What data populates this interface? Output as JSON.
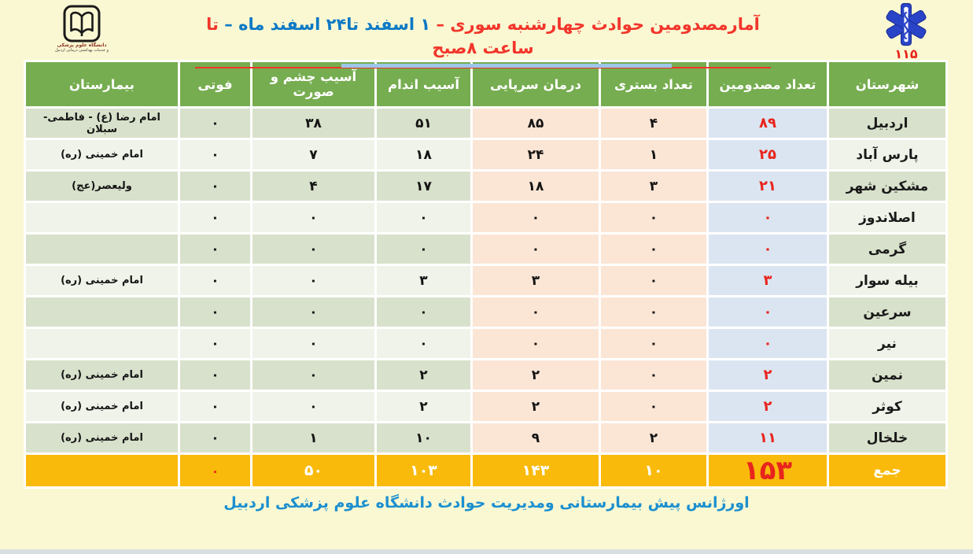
{
  "header": {
    "title_part1": "آمارمصدومین حوادث چهارشنبه سوری –",
    "title_part2": "۱ اسفند تا۲۴ اسفند ماه –",
    "title_part3": "تا ساعت ۸صبح",
    "ems_number": "۱۱۵",
    "university_caption_line1": "دانشگاه علوم پزشکی",
    "university_caption_line2": "و خدمات بهداشتی درمانی اردبیل"
  },
  "table": {
    "headers": [
      "شهرستان",
      "تعداد مصدومین",
      "تعداد بستری",
      "درمان سرپایی",
      "آسیب اندام",
      "آسیب چشم و\nصورت",
      "فوتی",
      "بیمارستان"
    ],
    "rows": [
      {
        "county": "اردبیل",
        "injured": "۸۹",
        "admitted": "۴",
        "outpatient": "۸۵",
        "limb": "۵۱",
        "eye": "۳۸",
        "death": "۰",
        "hospital": "امام رضا (ع) - فاطمی- سبلان"
      },
      {
        "county": "پارس آباد",
        "injured": "۲۵",
        "admitted": "۱",
        "outpatient": "۲۴",
        "limb": "۱۸",
        "eye": "۷",
        "death": "۰",
        "hospital": "امام خمینی (ره)"
      },
      {
        "county": "مشکین شهر",
        "injured": "۲۱",
        "admitted": "۳",
        "outpatient": "۱۸",
        "limb": "۱۷",
        "eye": "۴",
        "death": "۰",
        "hospital": "ولیعصر(عج)"
      },
      {
        "county": "اصلاندوز",
        "injured": "۰",
        "admitted": "۰",
        "outpatient": "۰",
        "limb": "۰",
        "eye": "۰",
        "death": "۰",
        "hospital": ""
      },
      {
        "county": "گرمی",
        "injured": "۰",
        "admitted": "۰",
        "outpatient": "۰",
        "limb": "۰",
        "eye": "۰",
        "death": "۰",
        "hospital": ""
      },
      {
        "county": "بیله سوار",
        "injured": "۳",
        "admitted": "۰",
        "outpatient": "۳",
        "limb": "۳",
        "eye": "۰",
        "death": "۰",
        "hospital": "امام خمینی (ره)"
      },
      {
        "county": "سرعین",
        "injured": "۰",
        "admitted": "۰",
        "outpatient": "۰",
        "limb": "۰",
        "eye": "۰",
        "death": "۰",
        "hospital": ""
      },
      {
        "county": "نیر",
        "injured": "۰",
        "admitted": "۰",
        "outpatient": "۰",
        "limb": "۰",
        "eye": "۰",
        "death": "۰",
        "hospital": ""
      },
      {
        "county": "نمین",
        "injured": "۲",
        "admitted": "۰",
        "outpatient": "۲",
        "limb": "۲",
        "eye": "۰",
        "death": "۰",
        "hospital": "امام خمینی (ره)"
      },
      {
        "county": "کوثر",
        "injured": "۲",
        "admitted": "۰",
        "outpatient": "۲",
        "limb": "۲",
        "eye": "۰",
        "death": "۰",
        "hospital": "امام خمینی (ره)"
      },
      {
        "county": "خلخال",
        "injured": "۱۱",
        "admitted": "۲",
        "outpatient": "۹",
        "limb": "۱۰",
        "eye": "۱",
        "death": "۰",
        "hospital": "امام خمینی (ره)"
      }
    ],
    "totals": {
      "label": "جمع",
      "injured": "۱۵۳",
      "admitted": "۱۰",
      "outpatient": "۱۴۳",
      "limb": "۱۰۳",
      "eye": "۵۰",
      "death": "۰",
      "hospital": ""
    }
  },
  "footer": {
    "text": "اورژانس پیش بیمارستانی ومدیریت حوادث دانشگاه علوم پزشکی اردبیل"
  },
  "colors": {
    "page_bg": "#FAF8D2",
    "header_green": "#76AD50",
    "row_dark_green": "#D8E1CB",
    "row_light_green": "#EFF3E9",
    "injured_col_blue": "#DBE5F1",
    "peach_col": "#FBE5D5",
    "totals_orange": "#F9BA0B",
    "accent_red": "#E8251D",
    "title_blue": "#0C79C5",
    "footer_blue": "#1B8FD0",
    "ems_blue": "#2A44C8"
  },
  "chart_data": {
    "type": "table",
    "title": "آمارمصدومین حوادث چهارشنبه سوری – ۱ اسفند تا۲۴ اسفند ماه – تا ساعت ۸صبح",
    "columns": [
      "شهرستان",
      "تعداد مصدومین",
      "تعداد بستری",
      "درمان سرپایی",
      "آسیب اندام",
      "آسیب چشم و صورت",
      "فوتی",
      "بیمارستان"
    ],
    "rows": [
      {
        "county": "اردبیل",
        "injured": 89,
        "admitted": 4,
        "outpatient": 85,
        "limb_injury": 51,
        "eye_face_injury": 38,
        "deaths": 0,
        "hospital": "امام رضا (ع) - فاطمی- سبلان"
      },
      {
        "county": "پارس آباد",
        "injured": 25,
        "admitted": 1,
        "outpatient": 24,
        "limb_injury": 18,
        "eye_face_injury": 7,
        "deaths": 0,
        "hospital": "امام خمینی (ره)"
      },
      {
        "county": "مشکین شهر",
        "injured": 21,
        "admitted": 3,
        "outpatient": 18,
        "limb_injury": 17,
        "eye_face_injury": 4,
        "deaths": 0,
        "hospital": "ولیعصر(عج)"
      },
      {
        "county": "اصلاندوز",
        "injured": 0,
        "admitted": 0,
        "outpatient": 0,
        "limb_injury": 0,
        "eye_face_injury": 0,
        "deaths": 0,
        "hospital": ""
      },
      {
        "county": "گرمی",
        "injured": 0,
        "admitted": 0,
        "outpatient": 0,
        "limb_injury": 0,
        "eye_face_injury": 0,
        "deaths": 0,
        "hospital": ""
      },
      {
        "county": "بیله سوار",
        "injured": 3,
        "admitted": 0,
        "outpatient": 3,
        "limb_injury": 3,
        "eye_face_injury": 0,
        "deaths": 0,
        "hospital": "امام خمینی (ره)"
      },
      {
        "county": "سرعین",
        "injured": 0,
        "admitted": 0,
        "outpatient": 0,
        "limb_injury": 0,
        "eye_face_injury": 0,
        "deaths": 0,
        "hospital": ""
      },
      {
        "county": "نیر",
        "injured": 0,
        "admitted": 0,
        "outpatient": 0,
        "limb_injury": 0,
        "eye_face_injury": 0,
        "deaths": 0,
        "hospital": ""
      },
      {
        "county": "نمین",
        "injured": 2,
        "admitted": 0,
        "outpatient": 2,
        "limb_injury": 2,
        "eye_face_injury": 0,
        "deaths": 0,
        "hospital": "امام خمینی (ره)"
      },
      {
        "county": "کوثر",
        "injured": 2,
        "admitted": 0,
        "outpatient": 2,
        "limb_injury": 2,
        "eye_face_injury": 0,
        "deaths": 0,
        "hospital": "امام خمینی (ره)"
      },
      {
        "county": "خلخال",
        "injured": 11,
        "admitted": 2,
        "outpatient": 9,
        "limb_injury": 10,
        "eye_face_injury": 1,
        "deaths": 0,
        "hospital": "امام خمینی (ره)"
      }
    ],
    "totals": {
      "county": "جمع",
      "injured": 153,
      "admitted": 10,
      "outpatient": 143,
      "limb_injury": 103,
      "eye_face_injury": 50,
      "deaths": 0
    }
  }
}
